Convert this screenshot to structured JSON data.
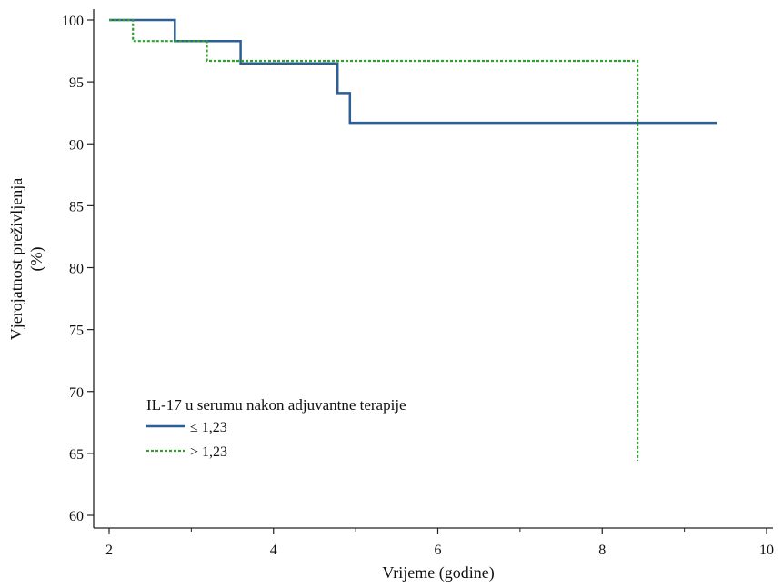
{
  "chart_data": {
    "type": "line",
    "chart_kind": "Kaplan-Meier survival curve",
    "title": "",
    "xlabel": "Vrijeme (godine)",
    "ylabel_line1": "Vjerojatnost preživljenja",
    "ylabel_line2": "(%)",
    "xlim": [
      2,
      10
    ],
    "ylim": [
      60,
      100
    ],
    "x_ticks": [
      2,
      4,
      6,
      8,
      10
    ],
    "y_ticks": [
      60,
      65,
      70,
      75,
      80,
      85,
      90,
      95,
      100
    ],
    "grid": false,
    "legend": {
      "title": "IL-17 u serumu nakon adjuvantne terapije",
      "placement": "bottom-left"
    },
    "series": [
      {
        "name": "≤ 1,23",
        "color": "#2d5f95",
        "line_style": "solid",
        "x": [
          2.0,
          2.8,
          2.8,
          3.6,
          3.6,
          4.78,
          4.78,
          4.93,
          4.93,
          9.4
        ],
        "y": [
          100.0,
          100.0,
          98.3,
          98.3,
          96.5,
          96.5,
          94.1,
          94.1,
          91.7,
          91.7
        ]
      },
      {
        "name": "> 1,23",
        "color": "#2fa02f",
        "line_style": "dashed",
        "x": [
          2.0,
          2.29,
          2.29,
          3.19,
          3.19,
          8.43,
          8.43
        ],
        "y": [
          100.0,
          100.0,
          98.3,
          98.3,
          96.7,
          96.7,
          64.4
        ]
      }
    ]
  }
}
